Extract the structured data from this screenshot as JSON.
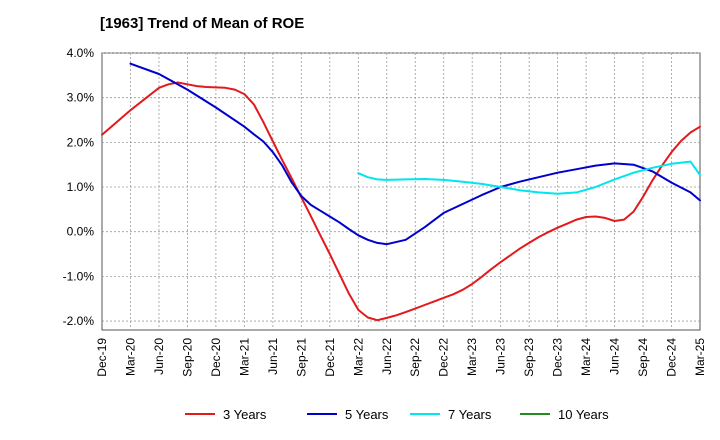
{
  "chart_data": {
    "type": "line",
    "title": "[1963]  Trend of Mean of ROE",
    "xlabel": "",
    "ylabel": "",
    "x_ticks": [
      "Dec-19",
      "Mar-20",
      "Jun-20",
      "Sep-20",
      "Dec-20",
      "Mar-21",
      "Jun-21",
      "Sep-21",
      "Dec-21",
      "Mar-22",
      "Jun-22",
      "Sep-22",
      "Dec-22",
      "Mar-23",
      "Jun-23",
      "Sep-23",
      "Dec-23",
      "Mar-24",
      "Jun-24",
      "Sep-24",
      "Dec-24",
      "Mar-25"
    ],
    "y_ticks": [
      "4.0%",
      "3.0%",
      "2.0%",
      "1.0%",
      "0.0%",
      "-1.0%",
      "-2.0%"
    ],
    "ylim": [
      -2.2,
      4.0
    ],
    "y_tick_values": [
      4,
      3,
      2,
      1,
      0,
      -1,
      -2
    ],
    "x_unit": "month index from Dec-19",
    "grid": true,
    "legend_position": "bottom",
    "series": [
      {
        "name": "3 Years",
        "color": "#e31a1c",
        "x": [
          0,
          3,
          6,
          7,
          8,
          9,
          10,
          11,
          12,
          13,
          14,
          15,
          16,
          17,
          18,
          19,
          20,
          21,
          22,
          23,
          24,
          25,
          26,
          27,
          28,
          29,
          30,
          31,
          32,
          33,
          34,
          35,
          36,
          37,
          38,
          39,
          40,
          41,
          42,
          43,
          44,
          45,
          46,
          47,
          48,
          49,
          50,
          51,
          52,
          53,
          54,
          55,
          56,
          57,
          58,
          59,
          60,
          61,
          62,
          63
        ],
        "values": [
          2.17,
          2.72,
          3.22,
          3.3,
          3.34,
          3.3,
          3.26,
          3.24,
          3.23,
          3.22,
          3.18,
          3.08,
          2.85,
          2.45,
          2.02,
          1.6,
          1.19,
          0.77,
          0.35,
          -0.08,
          -0.5,
          -0.94,
          -1.38,
          -1.75,
          -1.92,
          -1.98,
          -1.93,
          -1.87,
          -1.8,
          -1.72,
          -1.64,
          -1.56,
          -1.48,
          -1.4,
          -1.3,
          -1.17,
          -1.01,
          -0.84,
          -0.68,
          -0.53,
          -0.38,
          -0.25,
          -0.12,
          -0.01,
          0.09,
          0.18,
          0.27,
          0.33,
          0.34,
          0.31,
          0.24,
          0.27,
          0.45,
          0.78,
          1.15,
          1.48,
          1.78,
          2.03,
          2.22,
          2.35
        ]
      },
      {
        "name": "5 Years",
        "color": "#0000cc",
        "x": [
          3,
          6,
          9,
          12,
          15,
          16,
          17,
          18,
          19,
          20,
          21,
          22,
          23,
          24,
          25,
          26,
          27,
          28,
          29,
          30,
          32,
          34,
          36,
          38,
          40,
          42,
          44,
          46,
          48,
          50,
          52,
          54,
          56,
          58,
          60,
          62,
          63
        ],
        "values": [
          3.76,
          3.53,
          3.18,
          2.78,
          2.35,
          2.18,
          2.02,
          1.78,
          1.48,
          1.1,
          0.8,
          0.6,
          0.47,
          0.34,
          0.21,
          0.06,
          -0.08,
          -0.18,
          -0.25,
          -0.28,
          -0.18,
          0.1,
          0.42,
          0.62,
          0.82,
          1.0,
          1.12,
          1.22,
          1.32,
          1.4,
          1.48,
          1.53,
          1.5,
          1.35,
          1.1,
          0.88,
          0.7
        ]
      },
      {
        "name": "7 Years",
        "color": "#00e5ee",
        "x": [
          27,
          28,
          29,
          30,
          32,
          34,
          36,
          38,
          40,
          42,
          44,
          46,
          48,
          50,
          52,
          54,
          56,
          58,
          60,
          62,
          63
        ],
        "values": [
          1.31,
          1.22,
          1.17,
          1.16,
          1.17,
          1.18,
          1.16,
          1.12,
          1.07,
          1.0,
          0.93,
          0.88,
          0.85,
          0.88,
          1.0,
          1.17,
          1.32,
          1.43,
          1.52,
          1.57,
          1.27
        ]
      },
      {
        "name": "10 Years",
        "color": "#228b22",
        "x": [],
        "values": []
      }
    ]
  }
}
